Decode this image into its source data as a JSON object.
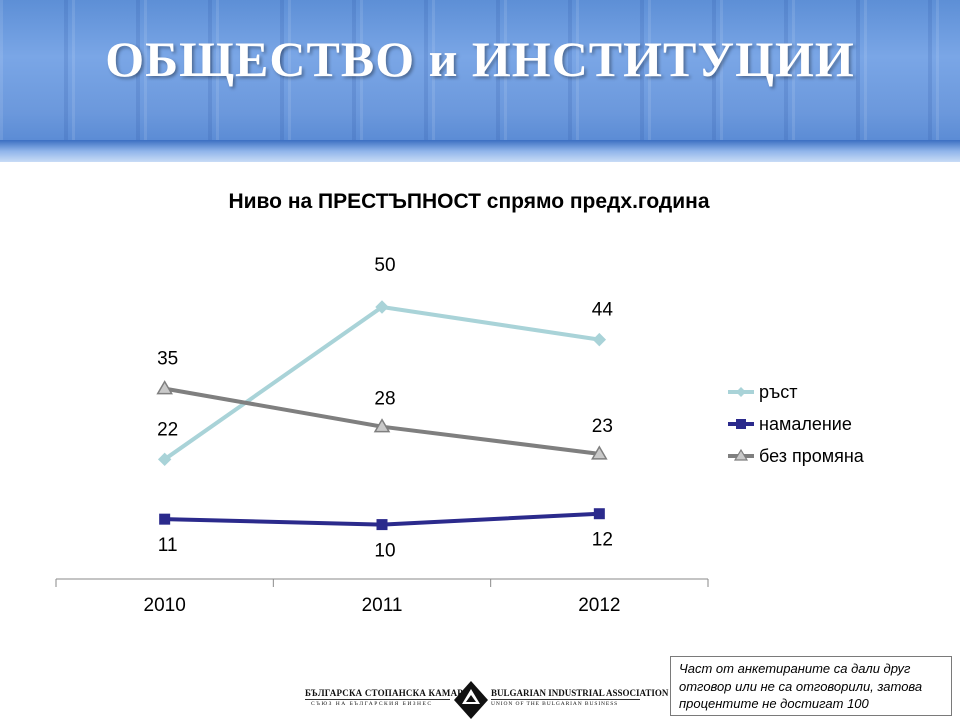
{
  "slide": {
    "title": "ОБЩЕСТВО и ИНСТИТУЦИИ"
  },
  "note": {
    "text": "Част от анкетираните са дали друг отговор или не са отговорили, затова процентите не достигат 100"
  },
  "logo": {
    "left_top": "БЪЛГАРСКА СТОПАНСКА КАМАРА",
    "left_bottom": "СЪЮЗ НА БЪЛГАРСКИЯ БИЗНЕС",
    "right_top": "BULGARIAN INDUSTRIAL ASSOCIATION",
    "right_bottom": "UNION OF THE BULGARIAN BUSINESS"
  },
  "colors": {
    "banner": "#6b98dc",
    "growth": "#a9d3d8",
    "decrease": "#2b2a8c",
    "no_change": "#7f7f7f"
  },
  "chart_data": {
    "type": "line",
    "title": "Ниво на ПРЕСТЪПНОСТ спрямо предх.година",
    "xlabel": "",
    "ylabel": "",
    "categories": [
      "2010",
      "2011",
      "2012"
    ],
    "ylim": [
      0,
      60
    ],
    "grid": false,
    "legend_position": "right",
    "series": [
      {
        "name": "ръст",
        "values": [
          22,
          50,
          44
        ],
        "color": "#a9d3d8",
        "marker": "diamond"
      },
      {
        "name": "намаление",
        "values": [
          11,
          10,
          12
        ],
        "color": "#2b2a8c",
        "marker": "square"
      },
      {
        "name": "без промяна",
        "values": [
          35,
          28,
          23
        ],
        "color": "#7f7f7f",
        "marker": "triangle"
      }
    ]
  }
}
